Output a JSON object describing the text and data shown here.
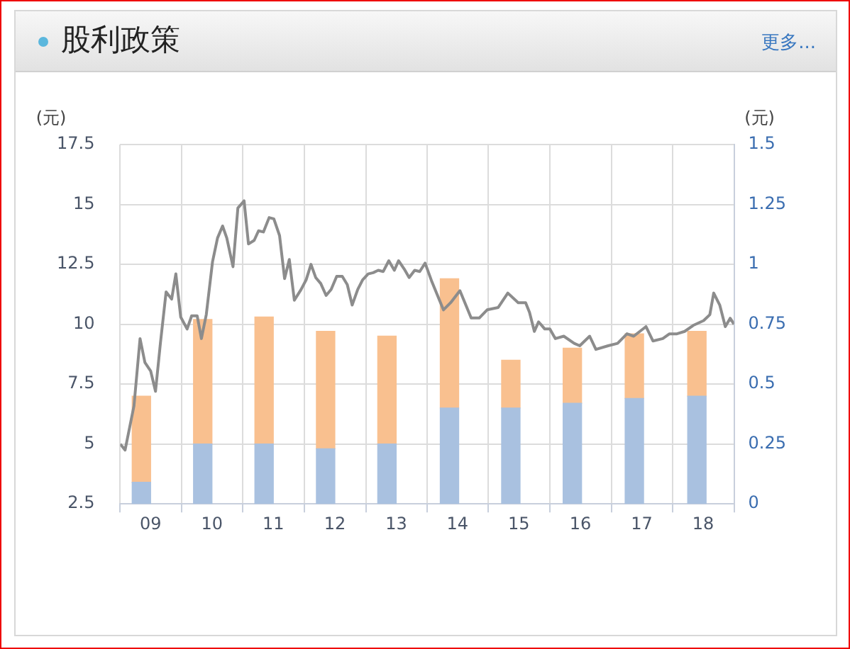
{
  "chart_data": {
    "type": "bar",
    "title": "股利政策",
    "annotations": [
      "更多..."
    ],
    "ylabel": "(元)",
    "y2label": "(元)",
    "stacked": true,
    "grid": true,
    "legend": false,
    "marker": "none",
    "xlim": [
      "2009-01-01",
      "2019-01-01"
    ],
    "xticks": [
      {
        "value": "2009-01-01",
        "label": null
      },
      {
        "value": "2009-07-01",
        "label": "09"
      },
      {
        "value": "2010-01-01",
        "label": null
      },
      {
        "value": "2010-07-01",
        "label": "10"
      },
      {
        "value": "2011-01-01",
        "label": null
      },
      {
        "value": "2011-07-01",
        "label": "11"
      },
      {
        "value": "2012-01-01",
        "label": null
      },
      {
        "value": "2012-07-01",
        "label": "12"
      },
      {
        "value": "2013-01-01",
        "label": null
      },
      {
        "value": "2013-07-01",
        "label": "13"
      },
      {
        "value": "2014-01-01",
        "label": null
      },
      {
        "value": "2014-07-01",
        "label": "14"
      },
      {
        "value": "2015-01-01",
        "label": null
      },
      {
        "value": "2015-07-01",
        "label": "15"
      },
      {
        "value": "2016-01-01",
        "label": null
      },
      {
        "value": "2016-07-01",
        "label": "16"
      },
      {
        "value": "2017-01-01",
        "label": null
      },
      {
        "value": "2017-07-01",
        "label": "17"
      },
      {
        "value": "2018-01-01",
        "label": null
      },
      {
        "value": "2018-07-01",
        "label": "18"
      },
      {
        "value": "2019-01-01",
        "label": null
      }
    ],
    "ylim": [
      2.5,
      17.5
    ],
    "yticks": [
      2.5,
      5,
      7.5,
      10,
      12.5,
      15,
      17.5
    ],
    "y2lim": [
      0,
      1.5
    ],
    "y2ticks": [
      0,
      0.25,
      0.5,
      0.75,
      1,
      1.25,
      1.5
    ],
    "series": [
      {
        "axis": "y2",
        "color": "#a9c1e0",
        "x": [
          "2009-05-07",
          "2010-05-07",
          "2011-05-07",
          "2012-05-07",
          "2013-05-07",
          "2014-05-14",
          "2015-05-14",
          "2016-05-14",
          "2017-05-18",
          "2018-05-25"
        ],
        "values": [
          0.09,
          0.25,
          0.25,
          0.23,
          0.25,
          0.4,
          0.4,
          0.42,
          0.44,
          0.45
        ]
      },
      {
        "axis": "y2",
        "color": "#f9c08f",
        "x": [
          "2009-05-07",
          "2010-05-07",
          "2011-05-07",
          "2012-05-07",
          "2013-05-07",
          "2014-05-14",
          "2015-05-14",
          "2016-05-14",
          "2017-05-18",
          "2018-05-25"
        ],
        "values": [
          0.36,
          0.52,
          0.53,
          0.49,
          0.45,
          0.54,
          0.2,
          0.23,
          0.27,
          0.27
        ]
      },
      {
        "type": "line",
        "axis": "y",
        "color": "#8c8c8c",
        "line_style": "solid",
        "x": [
          "2009-01-01",
          "2009-01-30",
          "2009-03-24",
          "2009-04-29",
          "2009-05-28",
          "2009-07-01",
          "2009-07-30",
          "2009-08-28",
          "2009-10-01",
          "2009-11-03",
          "2009-11-28",
          "2009-12-27",
          "2010-02-03",
          "2010-03-02",
          "2010-04-04",
          "2010-04-29",
          "2010-05-28",
          "2010-07-04",
          "2010-08-03",
          "2010-09-02",
          "2010-09-27",
          "2010-11-03",
          "2010-12-02",
          "2011-01-08",
          "2011-02-03",
          "2011-03-09",
          "2011-04-04",
          "2011-05-03",
          "2011-06-06",
          "2011-07-04",
          "2011-08-07",
          "2011-09-06",
          "2011-10-04",
          "2011-11-03",
          "2011-12-13",
          "2012-01-12",
          "2012-02-10",
          "2012-03-09",
          "2012-04-08",
          "2012-05-10",
          "2012-06-09",
          "2012-07-12",
          "2012-08-14",
          "2012-09-13",
          "2012-10-12",
          "2012-11-14",
          "2012-12-13",
          "2013-01-15",
          "2013-02-14",
          "2013-03-16",
          "2013-04-15",
          "2013-05-18",
          "2013-06-20",
          "2013-07-15",
          "2013-08-18",
          "2013-09-16",
          "2013-10-19",
          "2013-11-18",
          "2013-12-20",
          "2014-01-30",
          "2014-04-08",
          "2014-05-21",
          "2014-07-15",
          "2014-09-20",
          "2014-11-07",
          "2014-12-24",
          "2015-02-28",
          "2015-04-26",
          "2015-06-27",
          "2015-08-10",
          "2015-09-02",
          "2015-10-01",
          "2015-10-26",
          "2015-12-02",
          "2016-01-01",
          "2016-02-03",
          "2016-03-24",
          "2016-05-25",
          "2016-06-27",
          "2016-08-25",
          "2016-10-01",
          "2016-12-13",
          "2017-02-07",
          "2017-04-04",
          "2017-05-14",
          "2017-07-26",
          "2017-09-06",
          "2017-11-03",
          "2017-12-13",
          "2018-01-26",
          "2018-03-13",
          "2018-05-03",
          "2018-07-04",
          "2018-08-10",
          "2018-09-02",
          "2018-10-08",
          "2018-11-10",
          "2018-12-09",
          "2019-01-01"
        ],
        "values": [
          5.0,
          4.75,
          6.6,
          9.4,
          8.4,
          8.05,
          7.2,
          9.2,
          11.35,
          11.05,
          12.1,
          10.3,
          9.8,
          10.35,
          10.35,
          9.4,
          10.4,
          12.6,
          13.6,
          14.1,
          13.6,
          12.4,
          14.85,
          15.15,
          13.35,
          13.5,
          13.9,
          13.85,
          14.45,
          14.4,
          13.7,
          11.9,
          12.7,
          11.0,
          11.45,
          11.85,
          12.5,
          11.95,
          11.7,
          11.2,
          11.45,
          12.0,
          12.0,
          11.65,
          10.8,
          11.45,
          11.85,
          12.1,
          12.15,
          12.25,
          12.2,
          12.65,
          12.25,
          12.65,
          12.3,
          11.95,
          12.25,
          12.2,
          12.55,
          11.76,
          10.6,
          10.9,
          11.4,
          10.26,
          10.26,
          10.6,
          10.7,
          11.3,
          10.9,
          10.9,
          10.5,
          9.7,
          10.1,
          9.8,
          9.8,
          9.4,
          9.5,
          9.2,
          9.1,
          9.5,
          8.95,
          9.1,
          9.2,
          9.6,
          9.5,
          9.9,
          9.3,
          9.4,
          9.6,
          9.6,
          9.7,
          9.95,
          10.15,
          10.4,
          11.3,
          10.8,
          9.9,
          10.25,
          10.0
        ]
      }
    ]
  }
}
